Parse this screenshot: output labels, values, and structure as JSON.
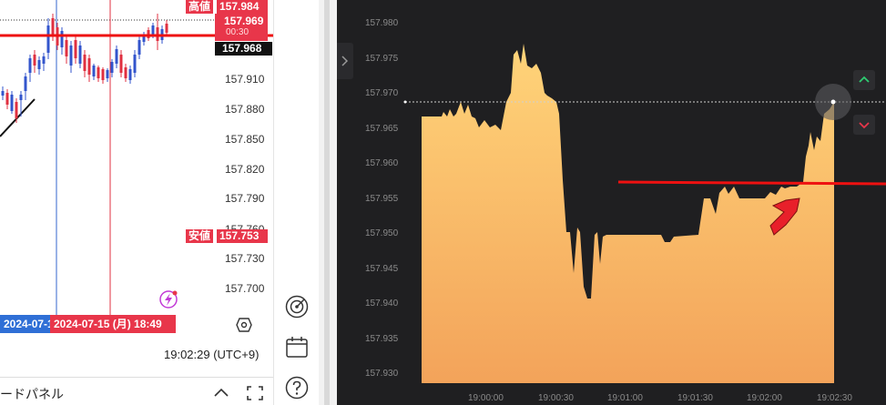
{
  "left_panel": {
    "price_axis": [
      "157.910",
      "157.880",
      "157.850",
      "157.820",
      "157.790",
      "157.760",
      "157.730",
      "157.700"
    ],
    "high_badge": {
      "label": "高値",
      "value": "157.984"
    },
    "current_badge": {
      "value": "157.969",
      "countdown": "00:30"
    },
    "last_price": "157.968",
    "low_badge": {
      "label": "安値",
      "value": "157.753"
    },
    "date_tags": [
      "2024-07-1",
      "2024-07-15 (月)   18:49"
    ],
    "time_readout": "19:02:29 (UTC+9)",
    "panel_title": "ードパネル"
  },
  "right_chart": {
    "y_labels": [
      "157.980",
      "157.975",
      "157.970",
      "157.965",
      "157.960",
      "157.955",
      "157.950",
      "157.945",
      "157.940",
      "157.935",
      "157.930"
    ],
    "x_labels": [
      "19:00:00",
      "19:00:30",
      "19:01:00",
      "19:01:30",
      "19:02:00",
      "19:02:30"
    ]
  },
  "colors": {
    "up": "#3355cc",
    "down": "#e03040",
    "badge_red": "#e8364a",
    "dark_bg": "#1f1f21",
    "area_top": "#ffd479",
    "area_bottom": "#f3a35a",
    "annotation": "#ff1a1a",
    "accent_green": "#2ecc71"
  },
  "icons": [
    "radar-icon",
    "calendar-icon",
    "help-icon",
    "chevron-up-icon",
    "chevron-down-icon",
    "settings-hex-icon",
    "lightning-icon"
  ]
}
